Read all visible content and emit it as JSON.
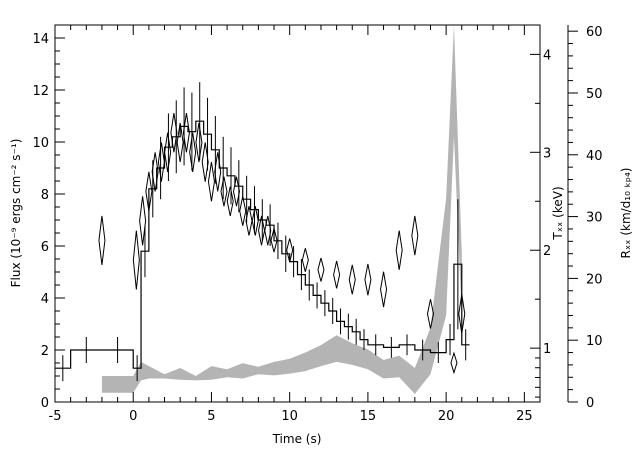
{
  "chart_data": {
    "type": "line",
    "title": "",
    "xlabel": "Time (s)",
    "ylabel_left": "Flux (10⁻⁹ ergs cm⁻² s⁻¹)",
    "ylabel_right_inner": "Tₓₓ (keV)",
    "ylabel_right_outer": "Rₓₓ (km/d₁₀ ₖₚ₄)",
    "xlim": [
      -5,
      26
    ],
    "ylim_flux": [
      0,
      14.5
    ],
    "ylim_temperature_keV": [
      0.45,
      4.3
    ],
    "ylim_radius": [
      0,
      61
    ],
    "x_ticks": [
      "-5",
      "0",
      "5",
      "10",
      "15",
      "20",
      "25"
    ],
    "x_tick_values": [
      -5,
      0,
      5,
      10,
      15,
      20,
      25
    ],
    "y_ticks_flux": [
      "0",
      "2",
      "4",
      "6",
      "8",
      "10",
      "12",
      "14"
    ],
    "y_tick_values_flux": [
      0,
      2,
      4,
      6,
      8,
      10,
      12,
      14
    ],
    "y_ticks_temperature": [
      "1",
      "2",
      "3",
      "4"
    ],
    "y_tick_values_temperature": [
      1,
      2,
      3,
      4
    ],
    "y_ticks_radius": [
      "0",
      "10",
      "20",
      "30",
      "40",
      "50",
      "60"
    ],
    "y_tick_values_radius": [
      0,
      10,
      20,
      30,
      40,
      50,
      60
    ],
    "colors": {
      "axes": "#000000",
      "flux": "#000000",
      "temperature": "#000000",
      "radius_band": "#b4b4b4"
    },
    "series": [
      {
        "kind": "flux-step",
        "axis": "flux",
        "x": [
          -5,
          -4,
          -2,
          0,
          0.5,
          1,
          1.5,
          2,
          2.5,
          3,
          3.5,
          4,
          4.5,
          5,
          5.5,
          6,
          6.5,
          7,
          7.5,
          8,
          8.5,
          9,
          9.5,
          10,
          10.5,
          11,
          11.5,
          12,
          12.5,
          13,
          13.5,
          14,
          14.5,
          15,
          16,
          17,
          18,
          19,
          20,
          20.5,
          21
        ],
        "y": [
          1.3,
          2.0,
          2.0,
          1.3,
          5.8,
          8.2,
          9.0,
          9.8,
          10.2,
          10.6,
          10.4,
          10.8,
          10.3,
          9.7,
          9.0,
          8.7,
          8.3,
          7.8,
          7.4,
          7.0,
          6.8,
          6.2,
          5.7,
          5.4,
          4.9,
          4.5,
          4.1,
          3.8,
          3.5,
          3.1,
          2.9,
          2.7,
          2.4,
          2.2,
          2.1,
          2.2,
          2.0,
          1.9,
          2.4,
          5.3,
          2.2
        ],
        "err": [
          0.5,
          0.5,
          0.5,
          0.5,
          1.0,
          1.1,
          1.2,
          1.3,
          1.4,
          1.5,
          1.5,
          1.5,
          1.4,
          1.3,
          1.2,
          1.1,
          1.0,
          0.9,
          0.9,
          0.8,
          0.8,
          0.7,
          0.7,
          0.6,
          0.6,
          0.6,
          0.5,
          0.5,
          0.5,
          0.5,
          0.5,
          0.5,
          0.4,
          0.4,
          0.4,
          0.4,
          0.4,
          0.4,
          0.6,
          2.5,
          0.6
        ]
      },
      {
        "kind": "temperature-diamonds",
        "axis": "temperature",
        "x": [
          -2,
          0.2,
          0.6,
          1,
          1.4,
          1.8,
          2.2,
          2.6,
          3,
          3.4,
          3.8,
          4.2,
          4.6,
          5,
          5.4,
          5.8,
          6.2,
          6.6,
          7,
          7.4,
          7.8,
          8.2,
          8.6,
          9,
          10,
          11,
          12,
          13,
          14,
          15,
          16,
          17,
          18,
          19,
          20.5,
          21
        ],
        "y": [
          2.1,
          1.9,
          2.3,
          2.6,
          2.8,
          2.9,
          3.0,
          3.2,
          3.1,
          3.2,
          3.0,
          3.1,
          2.9,
          2.7,
          2.8,
          2.6,
          2.5,
          2.6,
          2.4,
          2.3,
          2.3,
          2.2,
          2.2,
          2.1,
          2.0,
          1.9,
          1.8,
          1.75,
          1.7,
          1.7,
          1.6,
          2.0,
          2.15,
          1.35,
          0.85,
          1.35
        ],
        "err": [
          0.25,
          0.3,
          0.25,
          0.2,
          0.2,
          0.2,
          0.2,
          0.2,
          0.2,
          0.2,
          0.2,
          0.2,
          0.2,
          0.2,
          0.2,
          0.15,
          0.15,
          0.15,
          0.15,
          0.15,
          0.15,
          0.15,
          0.15,
          0.12,
          0.12,
          0.12,
          0.12,
          0.14,
          0.15,
          0.16,
          0.18,
          0.2,
          0.2,
          0.15,
          0.1,
          0.2
        ]
      },
      {
        "kind": "radius-band",
        "axis": "radius",
        "x": [
          -2,
          0,
          0.5,
          1,
          2,
          3,
          4,
          5,
          6,
          7,
          8,
          9,
          10,
          11,
          12,
          13,
          14,
          15,
          16,
          17,
          18,
          19,
          20,
          20.5,
          21
        ],
        "lower": [
          1.5,
          1.5,
          3.5,
          3.8,
          3.8,
          3.6,
          3.5,
          3.6,
          4.0,
          3.8,
          4.5,
          4.3,
          4.6,
          5.0,
          5.8,
          6.5,
          6.0,
          5.3,
          3.8,
          4.0,
          1.3,
          4.5,
          14.0,
          43.0,
          14.0
        ],
        "upper": [
          4.2,
          4.2,
          6.5,
          5.8,
          4.5,
          5.5,
          4.2,
          5.8,
          5.3,
          6.3,
          5.7,
          6.5,
          7.0,
          8.0,
          9.2,
          10.8,
          9.5,
          8.5,
          6.8,
          7.5,
          5.5,
          12.0,
          33.0,
          61.0,
          24.0
        ]
      }
    ]
  }
}
